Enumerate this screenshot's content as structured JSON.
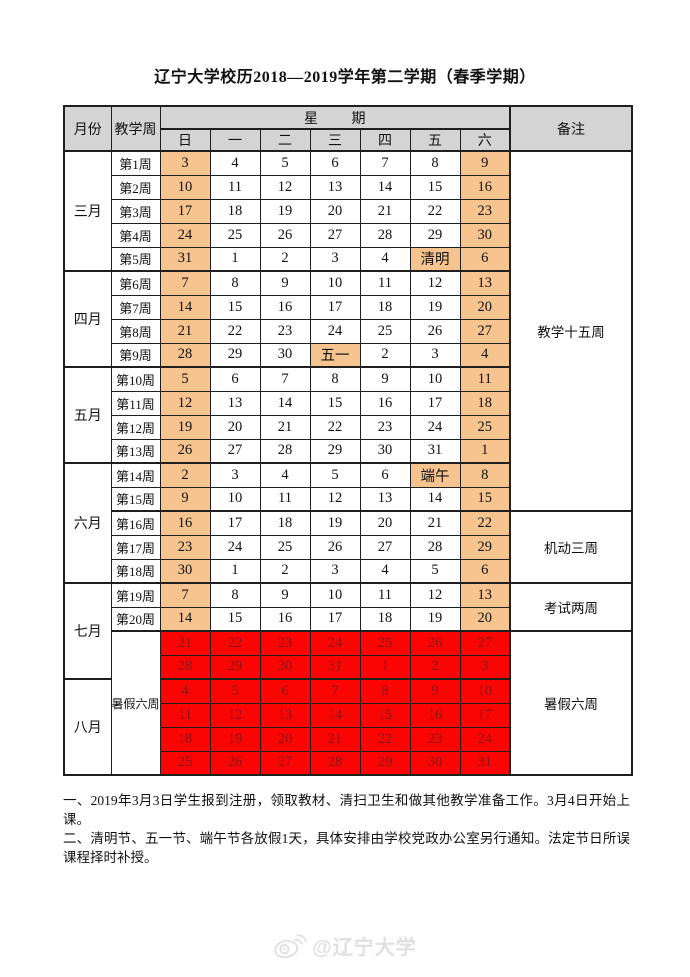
{
  "title": "辽宁大学校历2018—2019学年第二学期（春季学期）",
  "table": {
    "header": {
      "month": "月份",
      "teaching_week": "教学周",
      "week": "星期",
      "days": [
        "日",
        "一",
        "二",
        "三",
        "四",
        "五",
        "六"
      ],
      "remarks": "备注"
    },
    "months": [
      {
        "label": "三月",
        "start": 0,
        "span": 5
      },
      {
        "label": "四月",
        "start": 5,
        "span": 4
      },
      {
        "label": "五月",
        "start": 9,
        "span": 4
      },
      {
        "label": "六月",
        "start": 13,
        "span": 5
      },
      {
        "label": "七月",
        "start": 18,
        "span": 4
      },
      {
        "label": "八月",
        "start": 22,
        "span": 4
      }
    ],
    "vacation_week_label": {
      "label": "暑假六周",
      "start": 20,
      "span": 6
    },
    "remarks": [
      {
        "label": "教学十五周",
        "start": 0,
        "span": 15
      },
      {
        "label": "机动三周",
        "start": 15,
        "span": 3
      },
      {
        "label": "考试两周",
        "start": 18,
        "span": 2
      },
      {
        "label": "暑假六周",
        "start": 20,
        "span": 6
      }
    ],
    "rows": [
      {
        "week": "第1周",
        "days": [
          "3",
          "4",
          "5",
          "6",
          "7",
          "8",
          "9"
        ],
        "hl": [
          0,
          6
        ]
      },
      {
        "week": "第2周",
        "days": [
          "10",
          "11",
          "12",
          "13",
          "14",
          "15",
          "16"
        ],
        "hl": [
          0,
          6
        ]
      },
      {
        "week": "第3周",
        "days": [
          "17",
          "18",
          "19",
          "20",
          "21",
          "22",
          "23"
        ],
        "hl": [
          0,
          6
        ]
      },
      {
        "week": "第4周",
        "days": [
          "24",
          "25",
          "26",
          "27",
          "28",
          "29",
          "30"
        ],
        "hl": [
          0,
          6
        ]
      },
      {
        "week": "第5周",
        "days": [
          "31",
          "1",
          "2",
          "3",
          "4",
          "清明",
          "6"
        ],
        "hl": [
          0,
          5,
          6
        ]
      },
      {
        "week": "第6周",
        "days": [
          "7",
          "8",
          "9",
          "10",
          "11",
          "12",
          "13"
        ],
        "hl": [
          0,
          6
        ]
      },
      {
        "week": "第7周",
        "days": [
          "14",
          "15",
          "16",
          "17",
          "18",
          "19",
          "20"
        ],
        "hl": [
          0,
          6
        ]
      },
      {
        "week": "第8周",
        "days": [
          "21",
          "22",
          "23",
          "24",
          "25",
          "26",
          "27"
        ],
        "hl": [
          0,
          6
        ]
      },
      {
        "week": "第9周",
        "days": [
          "28",
          "29",
          "30",
          "五一",
          "2",
          "3",
          "4"
        ],
        "hl": [
          0,
          3,
          6
        ]
      },
      {
        "week": "第10周",
        "days": [
          "5",
          "6",
          "7",
          "8",
          "9",
          "10",
          "11"
        ],
        "hl": [
          0,
          6
        ]
      },
      {
        "week": "第11周",
        "days": [
          "12",
          "13",
          "14",
          "15",
          "16",
          "17",
          "18"
        ],
        "hl": [
          0,
          6
        ]
      },
      {
        "week": "第12周",
        "days": [
          "19",
          "20",
          "21",
          "22",
          "23",
          "24",
          "25"
        ],
        "hl": [
          0,
          6
        ]
      },
      {
        "week": "第13周",
        "days": [
          "26",
          "27",
          "28",
          "29",
          "30",
          "31",
          "1"
        ],
        "hl": [
          0,
          6
        ]
      },
      {
        "week": "第14周",
        "days": [
          "2",
          "3",
          "4",
          "5",
          "6",
          "端午",
          "8"
        ],
        "hl": [
          0,
          5,
          6
        ]
      },
      {
        "week": "第15周",
        "days": [
          "9",
          "10",
          "11",
          "12",
          "13",
          "14",
          "15"
        ],
        "hl": [
          0,
          6
        ]
      },
      {
        "week": "第16周",
        "days": [
          "16",
          "17",
          "18",
          "19",
          "20",
          "21",
          "22"
        ],
        "hl": [
          0,
          6
        ]
      },
      {
        "week": "第17周",
        "days": [
          "23",
          "24",
          "25",
          "26",
          "27",
          "28",
          "29"
        ],
        "hl": [
          0,
          6
        ]
      },
      {
        "week": "第18周",
        "days": [
          "30",
          "1",
          "2",
          "3",
          "4",
          "5",
          "6"
        ],
        "hl": [
          0,
          6
        ]
      },
      {
        "week": "第19周",
        "days": [
          "7",
          "8",
          "9",
          "10",
          "11",
          "12",
          "13"
        ],
        "hl": [
          0,
          6
        ]
      },
      {
        "week": "第20周",
        "days": [
          "14",
          "15",
          "16",
          "17",
          "18",
          "19",
          "20"
        ],
        "hl": [
          0,
          6
        ]
      },
      {
        "week": "",
        "days": [
          "21",
          "22",
          "23",
          "24",
          "25",
          "26",
          "27"
        ],
        "red": true
      },
      {
        "week": "",
        "days": [
          "28",
          "29",
          "30",
          "31",
          "1",
          "2",
          "3"
        ],
        "red": true
      },
      {
        "week": "",
        "days": [
          "4",
          "5",
          "6",
          "7",
          "8",
          "9",
          "10"
        ],
        "red": true
      },
      {
        "week": "",
        "days": [
          "11",
          "12",
          "13",
          "14",
          "15",
          "16",
          "17"
        ],
        "red": true
      },
      {
        "week": "",
        "days": [
          "18",
          "19",
          "20",
          "21",
          "22",
          "23",
          "24"
        ],
        "red": true
      },
      {
        "week": "",
        "days": [
          "25",
          "26",
          "27",
          "28",
          "29",
          "30",
          "31"
        ],
        "red": true
      }
    ]
  },
  "notes": [
    "一、2019年3月3日学生报到注册，领取教材、清扫卫生和做其他教学准备工作。3月4日开始上课。",
    "二、清明节、五一节、端午节各放假1天，具体安排由学校党政办公室另行通知。法定节日所误课程择时补授。"
  ],
  "watermark": {
    "icon": "weibo-icon",
    "text": "@辽宁大学"
  },
  "colors": {
    "header_bg": "#d4d4d4",
    "highlight_bg": "#f7c38e",
    "vacation_bg": "#fb0404",
    "vacation_text": "#8a1414",
    "border": "#1f1f1f",
    "watermark": "#e0e0e0"
  }
}
